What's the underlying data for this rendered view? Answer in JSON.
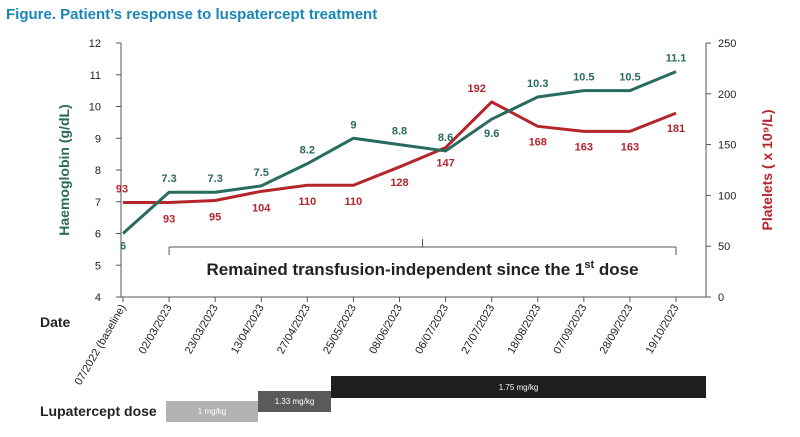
{
  "figure_title": "Figure. Patient’s response to luspatercept treatment",
  "date_label": "Date",
  "dose_label": "Lupatercept dose",
  "annotation": "Remained transfusion-independent since the 1st dose",
  "dose_bars": [
    {
      "label": "1 mg/kg",
      "color": "#b3b3b3"
    },
    {
      "label": "1.33 mg/kg",
      "color": "#5a5a5a"
    },
    {
      "label": "1.75 mg/kg",
      "color": "#1e1e1e"
    }
  ],
  "colors": {
    "haemoglobin": "#2a6b5f",
    "platelets": "#b5252c"
  },
  "chart_data": {
    "type": "line",
    "x": [
      "07/2022 (baseline)",
      "02/03/2023",
      "23/03/2023",
      "13/04/2023",
      "27/04/2023",
      "25/05/2023",
      "08/06/2023",
      "06/07/2023",
      "27/07/2023",
      "18/08/2023",
      "07/09/2023",
      "28/09/2023",
      "19/10/2023"
    ],
    "left_axis": {
      "label": "Haemoglobin (g/dL)",
      "range": [
        4,
        12
      ],
      "ticks": [
        4,
        5,
        6,
        7,
        8,
        9,
        10,
        11,
        12
      ]
    },
    "right_axis": {
      "label": "Platelets ( x 10⁹/L)",
      "range": [
        0,
        250
      ],
      "ticks": [
        0,
        50,
        100,
        150,
        200,
        250
      ]
    },
    "series": [
      {
        "axis": "left",
        "values": [
          6,
          7.3,
          7.3,
          7.5,
          8.2,
          9,
          8.8,
          8.6,
          9.6,
          10.3,
          10.5,
          10.5,
          11.1
        ],
        "labels": [
          "6",
          "7.3",
          "7.3",
          "7.5",
          "8.2",
          "9",
          "8.8",
          "8.6",
          "9.6",
          "10.3",
          "10.5",
          "10.5",
          "11.1"
        ]
      },
      {
        "axis": "right",
        "values": [
          93,
          93,
          95,
          104,
          110,
          110,
          128,
          147,
          192,
          168,
          163,
          163,
          181
        ],
        "labels": [
          "93",
          "93",
          "95",
          "104",
          "110",
          "110",
          "128",
          "147",
          "192",
          "168",
          "163",
          "163",
          "181"
        ]
      }
    ]
  }
}
